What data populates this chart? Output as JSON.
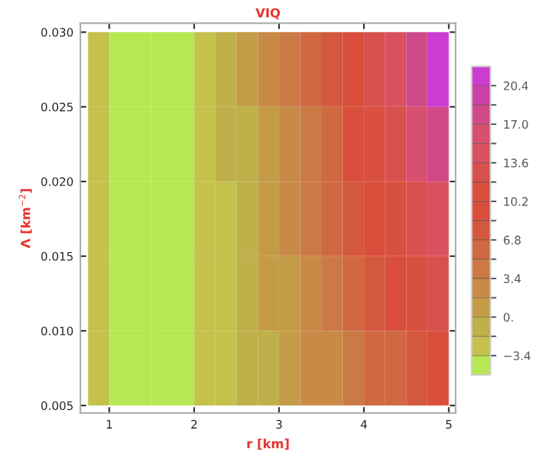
{
  "chart_data": {
    "type": "heatmap",
    "title": "VIQ",
    "xlabel": "r [km]",
    "ylabel": "Λ [km$^{−2}$]",
    "x": [
      0.875,
      1.125,
      1.375,
      1.625,
      1.875,
      2.125,
      2.375,
      2.625,
      2.875,
      3.125,
      3.375,
      3.625,
      3.875,
      4.125,
      4.375,
      4.625,
      4.875
    ],
    "cells": [
      [
        -2.55,
        -4.25,
        -4.25,
        -4.25,
        -4.25,
        -2.55,
        -0.85,
        0.85,
        2.55,
        4.25,
        5.95,
        7.65,
        9.35,
        12.75,
        14.45,
        17.85,
        21.25
      ],
      [
        -2.55,
        -4.25,
        -4.25,
        -4.25,
        -4.25,
        -2.55,
        -0.85,
        -0.85,
        0.85,
        2.55,
        4.25,
        5.95,
        9.35,
        11.05,
        12.75,
        16.15,
        17.85
      ],
      [
        -2.55,
        -4.25,
        -4.25,
        -4.25,
        -4.25,
        -2.55,
        -2.55,
        -0.85,
        0.85,
        2.55,
        4.25,
        5.95,
        7.65,
        9.35,
        11.05,
        12.75,
        14.45
      ],
      [
        -2.55,
        -4.25,
        -4.25,
        -4.25,
        -4.25,
        -2.55,
        -2.55,
        -0.85,
        0.85,
        0.85,
        2.55,
        4.25,
        5.95,
        7.65,
        9.35,
        11.05,
        12.75
      ],
      [
        -2.55,
        -4.25,
        -4.25,
        -4.25,
        -4.25,
        -2.55,
        -2.55,
        -0.85,
        -0.85,
        0.85,
        2.55,
        2.55,
        4.25,
        5.95,
        5.95,
        7.65,
        9.35
      ]
    ],
    "xlim": [
      0.66,
      5.08
    ],
    "ylim": [
      0.0045,
      0.0306
    ],
    "xticks": [
      1,
      2,
      3,
      4,
      5
    ],
    "yticks": [
      {
        "value": 0.005,
        "label": "0.005"
      },
      {
        "value": 0.01,
        "label": "0.010"
      },
      {
        "value": 0.015,
        "label": "0.015"
      },
      {
        "value": 0.02,
        "label": "0.020"
      },
      {
        "value": 0.025,
        "label": "0.025"
      },
      {
        "value": 0.03,
        "label": "0.030"
      }
    ],
    "clim": [
      -5.1,
      22.1
    ],
    "cticks": [
      {
        "value": -3.4,
        "label": "−3.4"
      },
      {
        "value": -1.7,
        "label": null
      },
      {
        "value": 0,
        "label": "0."
      },
      {
        "value": 1.7,
        "label": null
      },
      {
        "value": 3.4,
        "label": "3.4"
      },
      {
        "value": 5.1,
        "label": null
      },
      {
        "value": 6.8,
        "label": "6.8"
      },
      {
        "value": 8.5,
        "label": null
      },
      {
        "value": 10.2,
        "label": "10.2"
      },
      {
        "value": 11.9,
        "label": null
      },
      {
        "value": 13.6,
        "label": "13.6"
      },
      {
        "value": 15.3,
        "label": null
      },
      {
        "value": 17.0,
        "label": "17.0"
      },
      {
        "value": 18.7,
        "label": null
      },
      {
        "value": 20.4,
        "label": "20.4"
      }
    ]
  }
}
